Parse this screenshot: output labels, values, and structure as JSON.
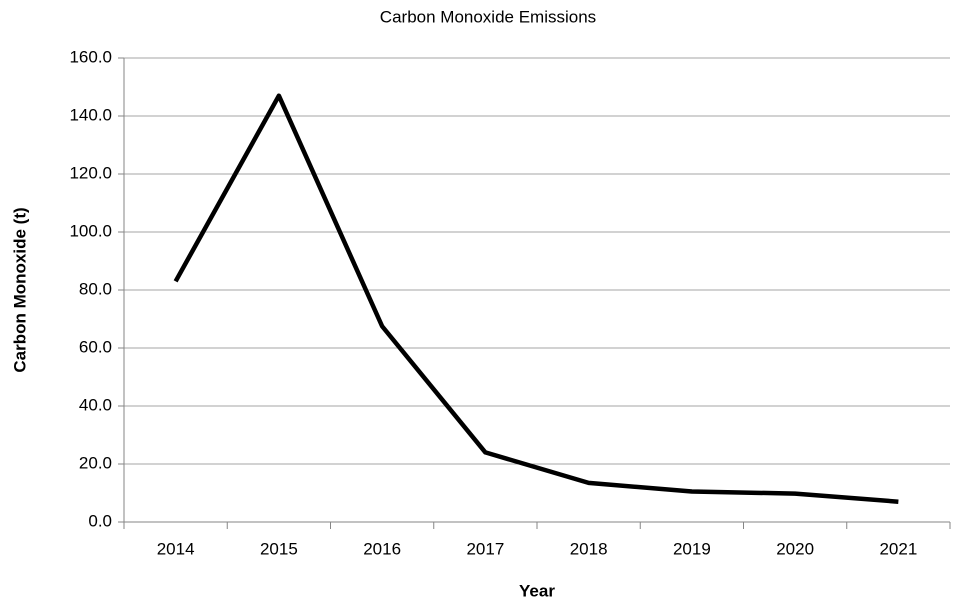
{
  "chart_data": {
    "type": "line",
    "title": "Carbon Monoxide Emissions",
    "x_label": "Year",
    "y_label": "Carbon Monoxide (t)",
    "categories": [
      "2014",
      "2015",
      "2016",
      "2017",
      "2018",
      "2019",
      "2020",
      "2021"
    ],
    "values": [
      83,
      147,
      67.5,
      24,
      13.5,
      10.5,
      9.8,
      7
    ],
    "color": "#000000",
    "ylim": [
      0,
      160
    ],
    "yticks": [
      {
        "value": 0,
        "label": "0.0"
      },
      {
        "value": 20,
        "label": "20.0"
      },
      {
        "value": 40,
        "label": "40.0"
      },
      {
        "value": 60,
        "label": "60.0"
      },
      {
        "value": 80,
        "label": "80.0"
      },
      {
        "value": 100,
        "label": "100.0"
      },
      {
        "value": 120,
        "label": "120.0"
      },
      {
        "value": 140,
        "label": "140.0"
      },
      {
        "value": 160,
        "label": "160.0"
      }
    ],
    "grid": true
  }
}
